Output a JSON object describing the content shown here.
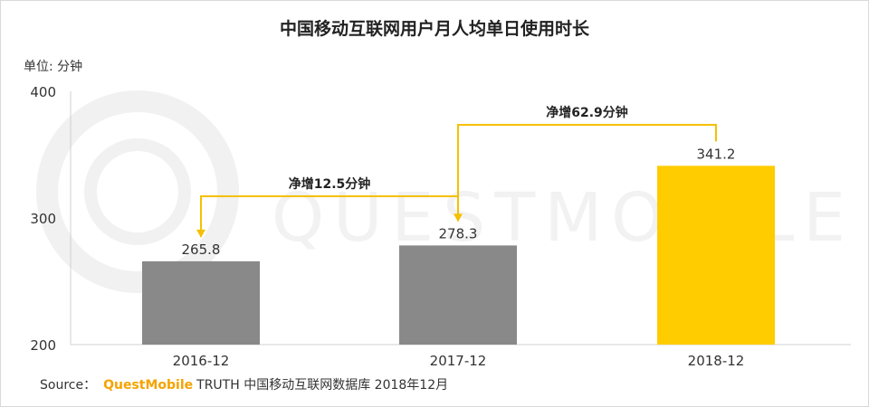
{
  "chart_data": {
    "type": "bar",
    "title": "中国移动互联网用户月人均单日使用时长",
    "unit_label": "单位: 分钟",
    "categories": [
      "2016-12",
      "2017-12",
      "2018-12"
    ],
    "values": [
      265.8,
      278.3,
      341.2
    ],
    "value_labels": [
      "265.8",
      "278.3",
      "341.2"
    ],
    "bar_colors": [
      "#898989",
      "#898989",
      "#ffcc00"
    ],
    "ylim": [
      200,
      400
    ],
    "yticks": [
      200,
      300,
      400
    ],
    "ytick_labels": [
      "200",
      "300",
      "400"
    ],
    "grid": false,
    "annotations": [
      {
        "text": "净增12.5分钟",
        "from_index": 0,
        "to_index": 1
      },
      {
        "text": "净增62.9分钟",
        "from_index": 1,
        "to_index": 2
      }
    ],
    "annotation_color": "#f5c000"
  },
  "watermark": "QUESTMOBILE",
  "source": {
    "prefix": "Source：",
    "brand": "QuestMobile",
    "rest": "TRUTH 中国移动互联网数据库 2018年12月"
  }
}
